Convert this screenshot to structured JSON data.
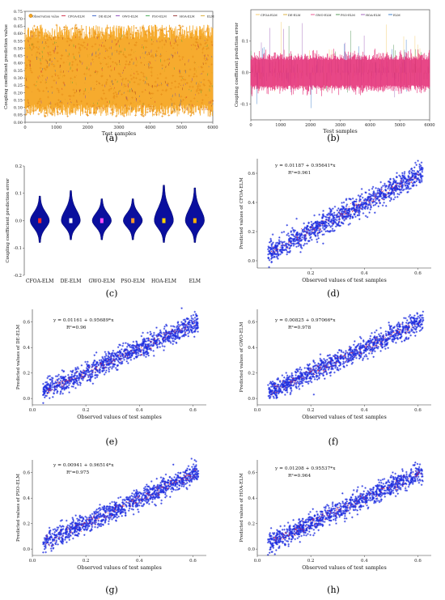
{
  "figure": {
    "panel_labels": [
      "(a)",
      "(b)",
      "(c)",
      "(d)",
      "(e)",
      "(f)",
      "(g)",
      "(h)"
    ]
  },
  "chart_data": [
    {
      "panel": "(a)",
      "type": "line",
      "xlabel": "Test samples",
      "ylabel": "Coupling coefficient prediction value",
      "xlim": [
        0,
        6000
      ],
      "ylim": [
        0,
        0.75
      ],
      "xticks": [
        0,
        1000,
        2000,
        3000,
        4000,
        5000,
        6000
      ],
      "yticks": [
        0.0,
        0.05,
        0.1,
        0.15,
        0.2,
        0.25,
        0.3,
        0.35,
        0.4,
        0.45,
        0.5,
        0.55,
        0.6,
        0.65,
        0.7,
        0.75
      ],
      "legend": [
        "Observation value",
        "CFOA-ELM",
        "DE-ELM",
        "GWO-ELM",
        "PSO-ELM",
        "HOA-ELM",
        "ELM"
      ],
      "legend_placement": "top",
      "value_range": [
        0.04,
        0.66
      ],
      "colors": {
        "observation": "#f5a623",
        "models": [
          "#c8102e",
          "#1f4fbf",
          "#7a2fb0",
          "#2a9d3a",
          "#8b1a1a",
          "#d4a017"
        ]
      }
    },
    {
      "panel": "(b)",
      "type": "line",
      "xlabel": "Test samples",
      "ylabel": "Coupling coefficient prediction error",
      "xlim": [
        0,
        6000
      ],
      "ylim": [
        -0.15,
        0.2
      ],
      "xticks": [
        0,
        1000,
        2000,
        3000,
        4000,
        5000,
        6000
      ],
      "yticks": [
        -0.1,
        0.0,
        0.1
      ],
      "legend": [
        "CFOA-ELM",
        "DE-ELM",
        "GWO-ELM",
        "PSO-ELM",
        "HOA-ELM",
        "ELM"
      ],
      "legend_placement": "top",
      "colors": {
        "main": "#e6337a",
        "secondary": [
          "#f2c14e",
          "#8e44ad",
          "#2e7d32",
          "#1565c0"
        ]
      }
    },
    {
      "panel": "(c)",
      "type": "violin",
      "ylabel": "Coupling coefficient prediction error",
      "categories": [
        "CFOA-ELM",
        "DE-ELM",
        "GWO-ELM",
        "PSO-ELM",
        "HOA-ELM",
        "ELM"
      ],
      "ylim": [
        -0.2,
        0.2
      ],
      "yticks": [
        -0.2,
        -0.1,
        0.0,
        0.1,
        0.2
      ],
      "ranges": [
        [
          -0.08,
          0.09
        ],
        [
          -0.07,
          0.11
        ],
        [
          -0.07,
          0.08
        ],
        [
          -0.07,
          0.08
        ],
        [
          -0.08,
          0.13
        ],
        [
          -0.08,
          0.12
        ]
      ],
      "centers": [
        0.0,
        0.0,
        0.0,
        0.0,
        0.0,
        0.0
      ],
      "colors": {
        "violin": "#0a0f9e",
        "centers": [
          "#ff2a2a",
          "#ffffff",
          "#ff4dff",
          "#ff9a2a",
          "#ffd400",
          "#ffb300"
        ]
      }
    },
    {
      "panel": "(d)",
      "type": "scatter",
      "xlabel": "Observed values of test samples",
      "ylabel": "Predicted values of CFOA-ELM",
      "equation": "y = 0.01187 + 0.95641*x",
      "r2": "R²=0.961",
      "intercept": 0.01187,
      "slope": 0.95641,
      "xlim": [
        0,
        0.65
      ],
      "ylim": [
        -0.05,
        0.7
      ],
      "xticks": [
        0.2,
        0.4,
        0.6
      ],
      "yticks": [
        0.0,
        0.2,
        0.4,
        0.6
      ]
    },
    {
      "panel": "(e)",
      "type": "scatter",
      "xlabel": "Observed values of test samples",
      "ylabel": "Predicted values of DE-ELM",
      "equation": "y = 0.01161 + 0.95689*x",
      "r2": "R²=0.96",
      "intercept": 0.01161,
      "slope": 0.95689,
      "xlim": [
        0,
        0.65
      ],
      "ylim": [
        -0.05,
        0.7
      ],
      "xticks": [
        0.0,
        0.2,
        0.4,
        0.6
      ],
      "yticks": [
        0.0,
        0.2,
        0.4,
        0.6
      ]
    },
    {
      "panel": "(f)",
      "type": "scatter",
      "xlabel": "Observed values of test samples",
      "ylabel": "Predicted values of GWO-ELM",
      "equation": "y = 0.00825 + 0.97066*x",
      "r2": "R²=0.978",
      "intercept": 0.00825,
      "slope": 0.97066,
      "xlim": [
        0,
        0.65
      ],
      "ylim": [
        -0.05,
        0.7
      ],
      "xticks": [
        0.0,
        0.2,
        0.4,
        0.6
      ],
      "yticks": [
        0.0,
        0.2,
        0.4,
        0.6
      ]
    },
    {
      "panel": "(g)",
      "type": "scatter",
      "xlabel": "Observed values of test samples",
      "ylabel": "Predicted values of PSO-ELM",
      "equation": "y = 0.00941 + 0.96514*x",
      "r2": "R²=0.975",
      "intercept": 0.00941,
      "slope": 0.96514,
      "xlim": [
        0,
        0.65
      ],
      "ylim": [
        -0.05,
        0.7
      ],
      "xticks": [
        0.0,
        0.2,
        0.4,
        0.6
      ],
      "yticks": [
        0.0,
        0.2,
        0.4,
        0.6
      ]
    },
    {
      "panel": "(h)",
      "type": "scatter",
      "xlabel": "Observed values of test samples",
      "ylabel": "Predicted values of HOA-ELM",
      "equation": "y = 0.01208 + 0.95537*x",
      "r2": "R²=0.964",
      "intercept": 0.01208,
      "slope": 0.95537,
      "xlim": [
        0,
        0.65
      ],
      "ylim": [
        -0.05,
        0.7
      ],
      "xticks": [
        0.0,
        0.2,
        0.4,
        0.6
      ],
      "yticks": [
        0.0,
        0.2,
        0.4,
        0.6
      ]
    }
  ]
}
